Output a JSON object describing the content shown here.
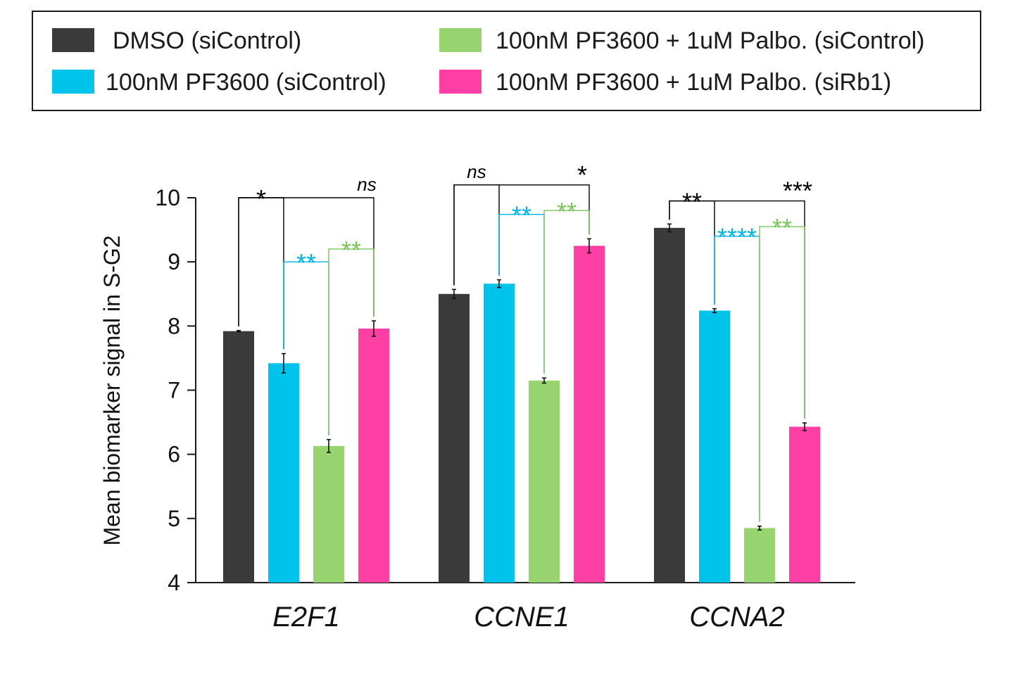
{
  "chart_data": {
    "type": "bar",
    "ylabel": "Mean biomarker signal in S-G2",
    "xlabel": "",
    "ylim": [
      4,
      10
    ],
    "yticks": [
      4,
      5,
      6,
      7,
      8,
      9,
      10
    ],
    "categories": [
      "E2F1",
      "CCNE1",
      "CCNA2"
    ],
    "legend_position": "top",
    "series": [
      {
        "name": "DMSO (siControl)",
        "color": "#3a3a3a",
        "values": [
          7.92,
          8.5,
          9.53
        ],
        "errors": [
          0.01,
          0.07,
          0.06
        ]
      },
      {
        "name": "100nM PF3600 (siControl)",
        "color": "#00c3ec",
        "values": [
          7.42,
          8.66,
          8.24
        ],
        "errors": [
          0.15,
          0.06,
          0.03
        ]
      },
      {
        "name": "100nM PF3600 + 1uM Palbo. (siControl)",
        "color": "#97d36e",
        "values": [
          6.13,
          7.15,
          4.85
        ],
        "errors": [
          0.1,
          0.04,
          0.03
        ]
      },
      {
        "name": "100nM PF3600 + 1uM Palbo. (siRb1)",
        "color": "#ff3fa4",
        "values": [
          7.96,
          9.25,
          6.43
        ],
        "errors": [
          0.12,
          0.11,
          0.06
        ]
      }
    ],
    "significance": [
      {
        "category": 0,
        "from": 0,
        "to": 1,
        "label": "*",
        "color": "#000000",
        "level": 10.0
      },
      {
        "category": 0,
        "from": 0,
        "to": 3,
        "label": "ns",
        "color": "#000000",
        "level": 10.0
      },
      {
        "category": 0,
        "from": 1,
        "to": 2,
        "label": "**",
        "color": "#00b4e6",
        "level": 9.0
      },
      {
        "category": 0,
        "from": 2,
        "to": 3,
        "label": "**",
        "color": "#7cc55a",
        "level": 9.2
      },
      {
        "category": 1,
        "from": 0,
        "to": 1,
        "label": "ns",
        "color": "#000000",
        "level": 10.2
      },
      {
        "category": 1,
        "from": 0,
        "to": 3,
        "label": "*",
        "color": "#000000",
        "level": 10.2
      },
      {
        "category": 1,
        "from": 1,
        "to": 2,
        "label": "**",
        "color": "#00b4e6",
        "level": 9.74
      },
      {
        "category": 1,
        "from": 2,
        "to": 3,
        "label": "**",
        "color": "#7cc55a",
        "level": 9.8
      },
      {
        "category": 2,
        "from": 0,
        "to": 1,
        "label": "**",
        "color": "#000000",
        "level": 9.95
      },
      {
        "category": 2,
        "from": 0,
        "to": 3,
        "label": "***",
        "color": "#000000",
        "level": 9.95
      },
      {
        "category": 2,
        "from": 1,
        "to": 2,
        "label": "****",
        "color": "#00b4e6",
        "level": 9.4
      },
      {
        "category": 2,
        "from": 2,
        "to": 3,
        "label": "**",
        "color": "#7cc55a",
        "level": 9.55
      }
    ]
  }
}
